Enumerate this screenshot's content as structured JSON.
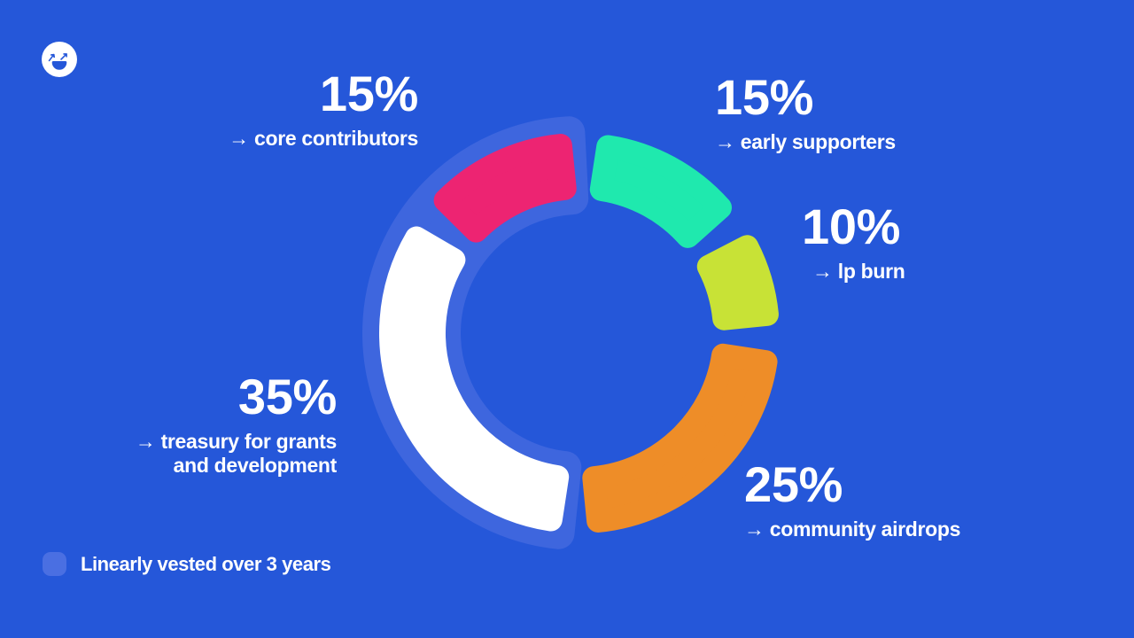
{
  "colors": {
    "background": "#2557d9",
    "vested_outline": "#3e66de",
    "legend_swatch": "#4a6fe2",
    "text": "#ffffff"
  },
  "logo": {
    "icon": "smiley-arrows-logo"
  },
  "chart_data": {
    "type": "pie",
    "subtype": "donut",
    "title": "",
    "clockwise_from_top": true,
    "segments": [
      {
        "label": "early supporters",
        "value": 15,
        "color": "#1fe9ae",
        "vested": false
      },
      {
        "label": "lp burn",
        "value": 10,
        "color": "#c8e236",
        "vested": false
      },
      {
        "label": "community airdrops",
        "value": 25,
        "color": "#ee8d28",
        "vested": false
      },
      {
        "label": "treasury for grants and development",
        "value": 35,
        "color": "#ffffff",
        "vested": true
      },
      {
        "label": "core contributors",
        "value": 15,
        "color": "#ed2472",
        "vested": true
      }
    ],
    "annotation": "vested segments are outlined in light blue",
    "legend_position": "bottom-left"
  },
  "callouts": {
    "core_contributors": {
      "pct": "15%",
      "label": "→ core contributors"
    },
    "early_supporters": {
      "pct": "15%",
      "label": "→ early supporters"
    },
    "lp_burn": {
      "pct": "10%",
      "label": "→ lp burn"
    },
    "treasury": {
      "pct": "35%",
      "label_line1": "→ treasury for grants",
      "label_line2": "and development"
    },
    "community_airdrops": {
      "pct": "25%",
      "label": "→ community airdrops"
    }
  },
  "legend": {
    "label": "Linearly vested over 3 years"
  }
}
